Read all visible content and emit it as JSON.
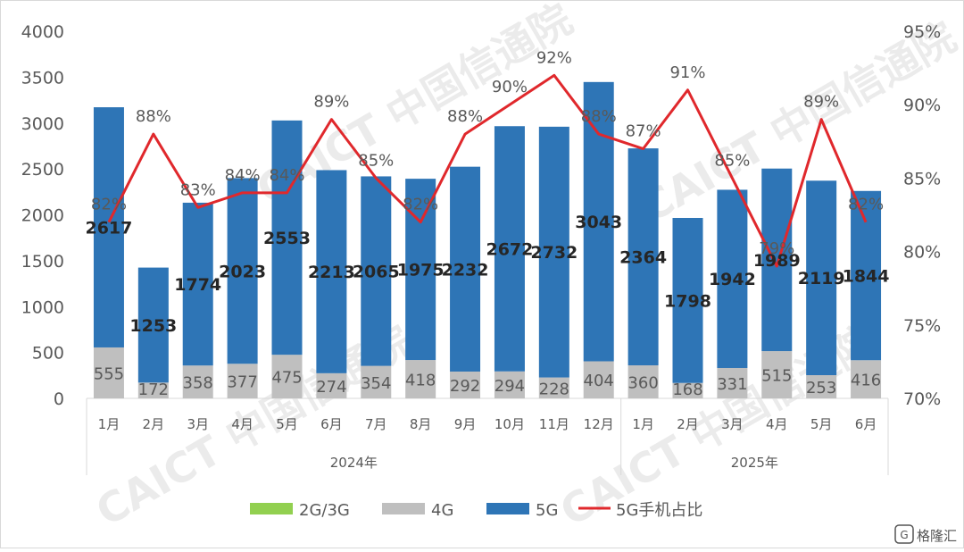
{
  "chart_data": {
    "type": "bar",
    "stacked": true,
    "categories": [
      "1月",
      "2月",
      "3月",
      "4月",
      "5月",
      "6月",
      "7月",
      "8月",
      "9月",
      "10月",
      "11月",
      "12月",
      "1月",
      "2月",
      "3月",
      "4月",
      "5月",
      "6月"
    ],
    "year_groups": [
      {
        "label": "2024年",
        "count": 12
      },
      {
        "label": "2025年",
        "count": 6
      }
    ],
    "series": [
      {
        "name": "2G/3G",
        "color": "#92d050",
        "values": [
          0,
          0,
          0,
          0,
          0,
          0,
          0,
          0,
          0,
          0,
          0,
          0,
          0,
          0,
          0,
          0,
          0,
          0
        ]
      },
      {
        "name": "4G",
        "color": "#bfbfbf",
        "values": [
          555,
          172,
          358,
          377,
          475,
          274,
          354,
          418,
          292,
          294,
          228,
          404,
          360,
          168,
          331,
          515,
          253,
          416
        ]
      },
      {
        "name": "5G",
        "color": "#2e75b6",
        "values": [
          2617,
          1253,
          1774,
          2023,
          2553,
          2213,
          2065,
          1975,
          2232,
          2672,
          2732,
          3043,
          2364,
          1798,
          1942,
          1989,
          2119,
          1844
        ]
      }
    ],
    "line_series": {
      "name": "5G手机占比",
      "color": "#e0282c",
      "values": [
        82,
        88,
        83,
        84,
        84,
        89,
        85,
        82,
        88,
        90,
        92,
        88,
        87,
        91,
        85,
        79,
        89,
        82
      ],
      "labels": [
        "82%",
        "88%",
        "83%",
        "84%",
        "84%",
        "89%",
        "85%",
        "82%",
        "88%",
        "90%",
        "92%",
        "88%",
        "87%",
        "91%",
        "85%",
        "79%",
        "89%",
        "82%"
      ]
    },
    "y_left": {
      "min": 0,
      "max": 4000,
      "step": 500,
      "ticks": [
        "0",
        "500",
        "1000",
        "1500",
        "2000",
        "2500",
        "3000",
        "3500",
        "4000"
      ]
    },
    "y_right": {
      "min": 70,
      "max": 95,
      "step": 5,
      "ticks": [
        "70%",
        "75%",
        "80%",
        "85%",
        "90%",
        "95%"
      ]
    },
    "legend": {
      "position": "bottom",
      "items": [
        "2G/3G",
        "4G",
        "5G",
        "5G手机占比"
      ]
    },
    "grid": false,
    "watermark": "CAICT 中国信通院"
  },
  "corner_badge": "格隆汇"
}
